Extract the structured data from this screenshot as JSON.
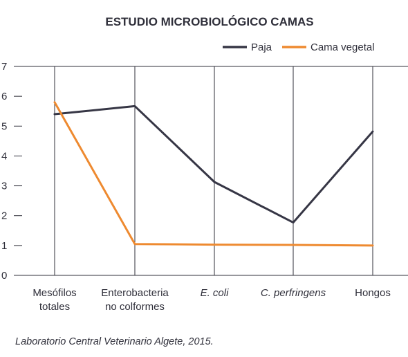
{
  "chart_data": {
    "type": "line",
    "title": "ESTUDIO MICROBIOLÓGICO CAMAS",
    "categories": [
      [
        "Mesófilos",
        "totales"
      ],
      [
        "Enterobacteria",
        "no colformes"
      ],
      [
        "E. coli"
      ],
      [
        "C. perfringens"
      ],
      [
        "Hongos"
      ]
    ],
    "italic_categories": [
      false,
      false,
      true,
      true,
      false
    ],
    "ylim": [
      0,
      7
    ],
    "yticks": [
      0,
      1,
      2,
      3,
      4,
      5,
      6,
      7
    ],
    "grid": {
      "vertical": true,
      "horizontal": false
    },
    "legend_position": "top-right",
    "series": [
      {
        "name": "Paja",
        "color": "#363645",
        "values": [
          5.4,
          5.67,
          3.13,
          1.77,
          4.82
        ]
      },
      {
        "name": "Cama vegetal",
        "color": "#ee8a30",
        "values": [
          5.8,
          1.05,
          1.03,
          1.02,
          1.0
        ]
      }
    ],
    "xlabel": "",
    "ylabel": ""
  },
  "source": "Laboratorio Central Veterinario Algete, 2015."
}
